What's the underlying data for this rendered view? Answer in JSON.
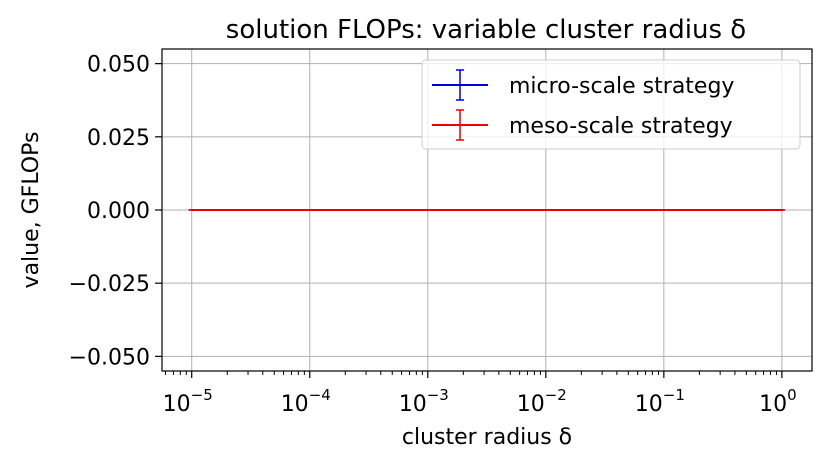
{
  "chart_data": {
    "type": "line",
    "title": "solution FLOPs: variable cluster radius δ",
    "xlabel": "cluster radius δ",
    "ylabel": "value, GFLOPs",
    "xscale": "log",
    "xlim": [
      5.6e-06,
      1.8
    ],
    "ylim": [
      -0.055,
      0.055
    ],
    "grid": true,
    "legend_position": "upper-right",
    "x_ticks": [
      {
        "value": 1e-05,
        "base": "10",
        "exp": "−5"
      },
      {
        "value": 0.0001,
        "base": "10",
        "exp": "−4"
      },
      {
        "value": 0.001,
        "base": "10",
        "exp": "−3"
      },
      {
        "value": 0.01,
        "base": "10",
        "exp": "−2"
      },
      {
        "value": 0.1,
        "base": "10",
        "exp": "−1"
      },
      {
        "value": 1,
        "base": "10",
        "exp": "0"
      }
    ],
    "y_ticks": [
      {
        "value": 0.05,
        "label": "0.050"
      },
      {
        "value": 0.025,
        "label": "0.025"
      },
      {
        "value": 0,
        "label": "0.000"
      },
      {
        "value": -0.025,
        "label": "−0.025"
      },
      {
        "value": -0.05,
        "label": "−0.050"
      }
    ],
    "series": [
      {
        "name": "micro-scale strategy",
        "color": "#0000dd",
        "x": [
          1e-05,
          1
        ],
        "y": [
          0,
          0
        ]
      },
      {
        "name": "meso-scale strategy",
        "color": "#ee0000",
        "x": [
          1e-05,
          1
        ],
        "y": [
          0,
          0
        ]
      }
    ]
  }
}
